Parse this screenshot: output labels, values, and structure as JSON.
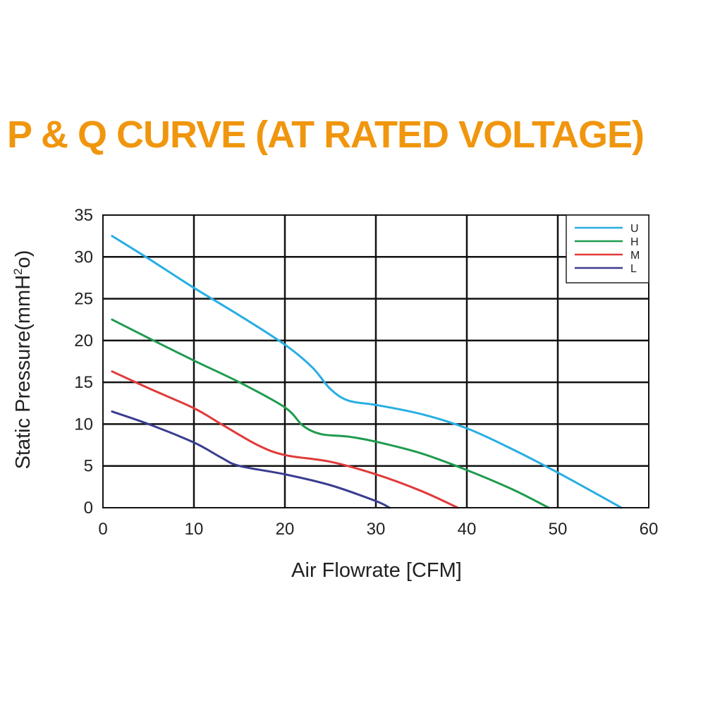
{
  "chart_data": {
    "type": "line",
    "title": "P & Q CURVE (AT RATED VOLTAGE)",
    "xlabel": "Air  Flowrate   [CFM]",
    "ylabel": "Static Pressure(mmH",
    "ylabel_sup": "2",
    "ylabel_end": "o)",
    "xlim": [
      0,
      60
    ],
    "ylim": [
      0,
      35
    ],
    "x_ticks": [
      "0",
      "10",
      "20",
      "30",
      "40",
      "50",
      "60"
    ],
    "y_ticks": [
      "0",
      "5",
      "10",
      "15",
      "20",
      "25",
      "30",
      "35"
    ],
    "grid": true,
    "legend_position": "top-right",
    "series": [
      {
        "name": "U",
        "color": "#27aee3",
        "points": [
          [
            1,
            32.5
          ],
          [
            5,
            29.8
          ],
          [
            10,
            26.3
          ],
          [
            15,
            23
          ],
          [
            20,
            19.5
          ],
          [
            23,
            16.8
          ],
          [
            25,
            14.2
          ],
          [
            27,
            12.8
          ],
          [
            30,
            12.3
          ],
          [
            35,
            11.2
          ],
          [
            40,
            9.5
          ],
          [
            45,
            7
          ],
          [
            50,
            4.2
          ],
          [
            57,
            0
          ]
        ]
      },
      {
        "name": "H",
        "color": "#1e9b4e",
        "points": [
          [
            1,
            22.5
          ],
          [
            5,
            20.3
          ],
          [
            10,
            17.6
          ],
          [
            15,
            15
          ],
          [
            20,
            12
          ],
          [
            22,
            9.8
          ],
          [
            24,
            8.8
          ],
          [
            27,
            8.5
          ],
          [
            30,
            7.9
          ],
          [
            35,
            6.5
          ],
          [
            40,
            4.5
          ],
          [
            45,
            2.2
          ],
          [
            49,
            0
          ]
        ]
      },
      {
        "name": "M",
        "color": "#e03a3a",
        "points": [
          [
            1,
            16.3
          ],
          [
            5,
            14.3
          ],
          [
            10,
            11.9
          ],
          [
            13,
            10
          ],
          [
            17,
            7.5
          ],
          [
            20,
            6.3
          ],
          [
            25,
            5.5
          ],
          [
            30,
            4
          ],
          [
            35,
            2
          ],
          [
            39,
            0
          ]
        ]
      },
      {
        "name": "L",
        "color": "#3b3c90",
        "points": [
          [
            1,
            11.5
          ],
          [
            5,
            10
          ],
          [
            10,
            7.8
          ],
          [
            13,
            6
          ],
          [
            15,
            5
          ],
          [
            20,
            4
          ],
          [
            25,
            2.7
          ],
          [
            30,
            0.8
          ],
          [
            31.5,
            0
          ]
        ]
      }
    ]
  }
}
